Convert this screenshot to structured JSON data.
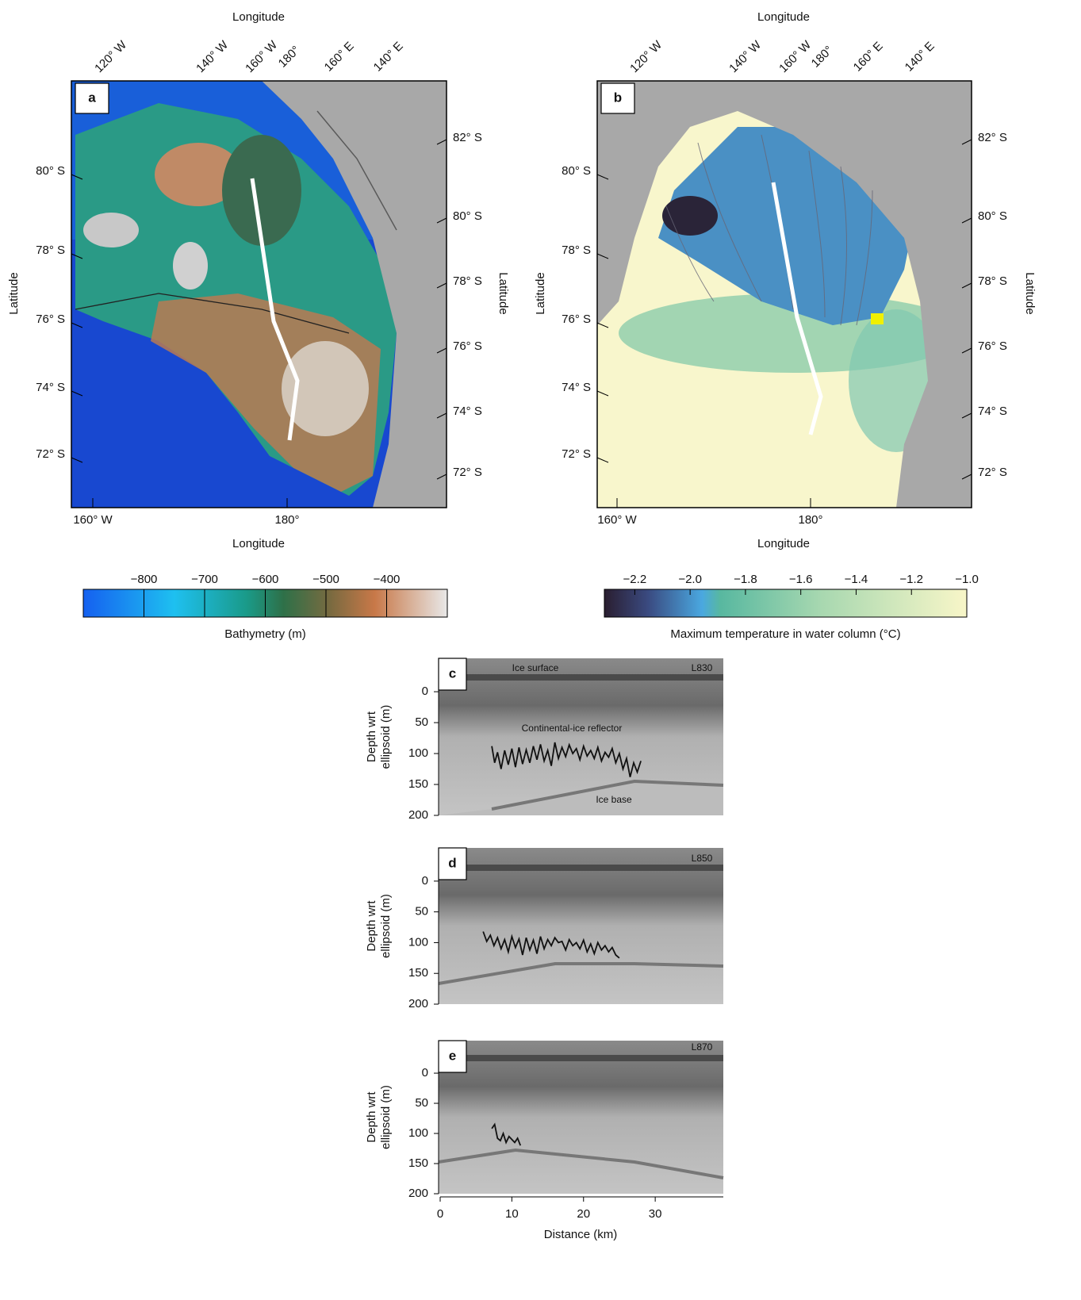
{
  "map_a": {
    "panel_label": "a",
    "top_axis_label": "Longitude",
    "bottom_axis_label": "Longitude",
    "left_axis_label": "Latitude",
    "right_axis_label": "Latitude",
    "top_ticks": [
      "120° W",
      "140° W",
      "160° W",
      "180°",
      "160° E",
      "140° E"
    ],
    "bottom_ticks": [
      "160° W",
      "180°"
    ],
    "left_ticks": [
      "80° S",
      "78° S",
      "76° S",
      "74° S",
      "72° S"
    ],
    "right_ticks": [
      "82° S",
      "80° S",
      "78° S",
      "76° S",
      "74° S",
      "72° S"
    ]
  },
  "map_b": {
    "panel_label": "b",
    "top_axis_label": "Longitude",
    "bottom_axis_label": "Longitude",
    "left_axis_label": "Latitude",
    "right_axis_label": "Latitude",
    "top_ticks": [
      "120° W",
      "140° W",
      "160° W",
      "180°",
      "160° E",
      "140° E"
    ],
    "bottom_ticks": [
      "160° W",
      "180°"
    ],
    "left_ticks": [
      "80° S",
      "78° S",
      "76° S",
      "74° S",
      "72° S"
    ],
    "right_ticks": [
      "82° S",
      "80° S",
      "78° S",
      "76° S",
      "74° S",
      "72° S"
    ]
  },
  "colorbar_a": {
    "label": "Bathymetry (m)",
    "lim": [
      -900,
      -300
    ],
    "ticks": [
      {
        "value": -800,
        "label": "−800"
      },
      {
        "value": -700,
        "label": "−700"
      },
      {
        "value": -600,
        "label": "−600"
      },
      {
        "value": -500,
        "label": "−500"
      },
      {
        "value": -400,
        "label": "−400"
      }
    ]
  },
  "colorbar_b": {
    "label": "Maximum temperature in water column (°C)",
    "lim": [
      -2.31,
      -1.0
    ],
    "ticks": [
      {
        "value": -2.2,
        "label": "−2.2"
      },
      {
        "value": -2.0,
        "label": "−2.0"
      },
      {
        "value": -1.8,
        "label": "−1.8"
      },
      {
        "value": -1.6,
        "label": "−1.6"
      },
      {
        "value": -1.4,
        "label": "−1.4"
      },
      {
        "value": -1.2,
        "label": "−1.2"
      },
      {
        "value": -1.0,
        "label": "−1.0"
      }
    ]
  },
  "profile_c": {
    "panel_label": "c",
    "ylabel": [
      "Depth wrt",
      "ellipsoid (m)"
    ],
    "ylim": [
      -54,
      200
    ],
    "yticks": [
      0,
      50,
      100,
      150,
      200
    ],
    "annotations": [
      "Ice surface",
      "L830",
      "Continental-ice reflector",
      "Ice base"
    ],
    "reflector": {
      "x": [
        7.2,
        7.6,
        8.0,
        8.5,
        9.0,
        9.5,
        10.0,
        10.5,
        11.0,
        11.5,
        12.0,
        12.5,
        13.0,
        13.5,
        14.0,
        14.5,
        15.0,
        15.5,
        16.0,
        16.5,
        17.0,
        17.5,
        18.0,
        18.5,
        19.0,
        19.5,
        20.0,
        20.5,
        21.0,
        21.5,
        22.0,
        22.5,
        23.0,
        23.5,
        24.0,
        24.5,
        25.0,
        25.5,
        26.0,
        26.5,
        27.0,
        27.5,
        28.0
      ],
      "y": [
        88,
        115,
        98,
        125,
        95,
        118,
        92,
        122,
        90,
        117,
        94,
        115,
        88,
        110,
        85,
        112,
        95,
        120,
        82,
        108,
        90,
        105,
        86,
        100,
        92,
        110,
        88,
        104,
        95,
        108,
        90,
        112,
        98,
        106,
        92,
        115,
        100,
        125,
        108,
        138,
        115,
        130,
        112
      ]
    }
  },
  "profile_d": {
    "panel_label": "d",
    "ylabel": [
      "Depth wrt",
      "ellipsoid (m)"
    ],
    "ylim": [
      -54,
      200
    ],
    "yticks": [
      0,
      50,
      100,
      150,
      200
    ],
    "annotations": [
      "L850"
    ],
    "reflector": {
      "x": [
        6.0,
        6.5,
        7.0,
        7.5,
        8.0,
        8.5,
        9.0,
        9.5,
        10.0,
        10.5,
        11.0,
        11.5,
        12.0,
        12.5,
        13.0,
        13.5,
        14.0,
        14.5,
        15.0,
        15.5,
        16.0,
        16.5,
        17.0,
        17.5,
        18.0,
        18.5,
        19.0,
        19.5,
        20.0,
        20.5,
        21.0,
        21.5,
        22.0,
        22.5,
        23.0,
        23.5,
        24.0,
        24.5,
        25.0
      ],
      "y": [
        82,
        98,
        88,
        105,
        92,
        110,
        95,
        115,
        90,
        108,
        94,
        120,
        92,
        112,
        96,
        118,
        90,
        110,
        95,
        105,
        92,
        100,
        98,
        112,
        95,
        105,
        100,
        110,
        96,
        115,
        102,
        118,
        100,
        112,
        105,
        115,
        108,
        120,
        125
      ]
    }
  },
  "profile_e": {
    "panel_label": "e",
    "ylabel": [
      "Depth wrt",
      "ellipsoid (m)"
    ],
    "ylim": [
      -54,
      200
    ],
    "yticks": [
      0,
      50,
      100,
      150,
      200
    ],
    "annotations": [
      "L870"
    ],
    "reflector": {
      "x": [
        7.2,
        7.6,
        8.0,
        8.4,
        8.8,
        9.2,
        9.6,
        10.0,
        10.4,
        10.8,
        11.2
      ],
      "y": [
        92,
        85,
        108,
        112,
        100,
        115,
        105,
        110,
        115,
        108,
        120
      ]
    }
  },
  "distance_axis": {
    "label": "Distance (km)",
    "xlim": [
      0,
      39.5
    ],
    "xticks": [
      0,
      10,
      20,
      30
    ]
  }
}
